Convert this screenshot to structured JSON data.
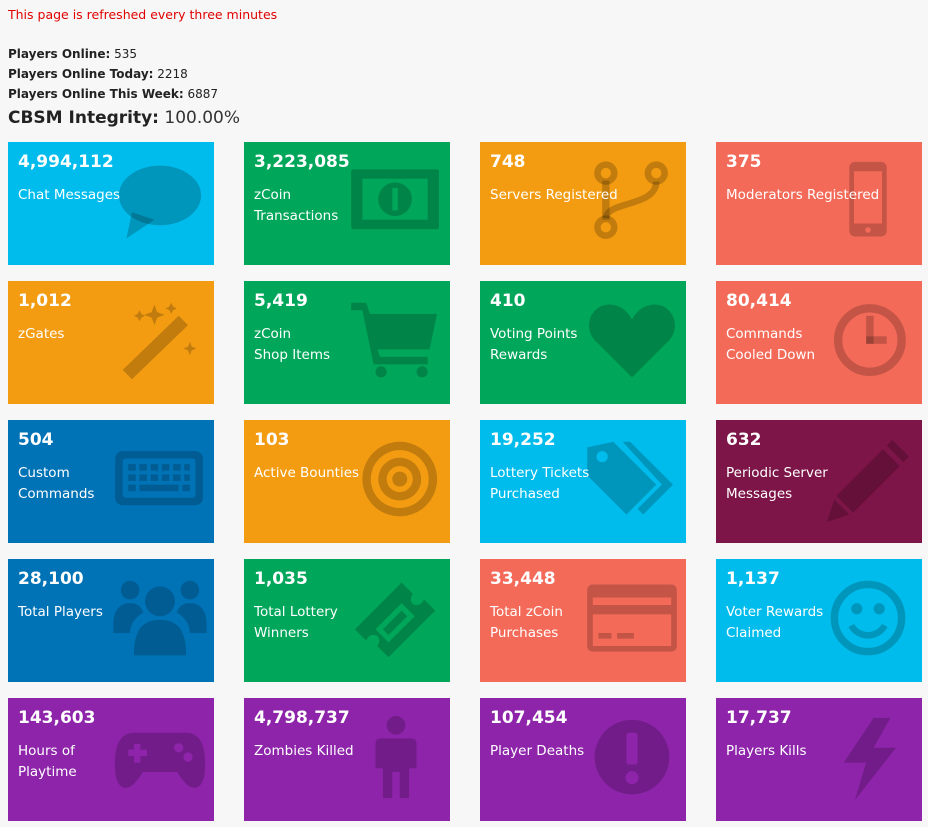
{
  "notice": "This page is refreshed every three minutes",
  "stats": [
    {
      "label": "Players Online:",
      "value": "535"
    },
    {
      "label": "Players Online Today:",
      "value": "2218"
    },
    {
      "label": "Players Online This Week:",
      "value": "6887"
    }
  ],
  "integrity": {
    "label": "CBSM Integrity:",
    "value": "100.00%"
  },
  "colors": {
    "cyan": "#00bcec",
    "green": "#00a65a",
    "orange": "#f39c12",
    "red": "#f46a58",
    "blue": "#0073b7",
    "maroon": "#7d1548",
    "purple": "#8e24aa"
  },
  "tiles": [
    {
      "value": "4,994,112",
      "label": "Chat Messages",
      "color": "#00bcec",
      "icon": "chat-bubble-icon"
    },
    {
      "value": "3,223,085",
      "label": "zCoin\nTransactions",
      "color": "#00a65a",
      "icon": "banknote-icon"
    },
    {
      "value": "748",
      "label": "Servers Registered",
      "color": "#f39c12",
      "icon": "code-fork-icon"
    },
    {
      "value": "375",
      "label": "Moderators Registered",
      "color": "#f46a58",
      "icon": "mobile-phone-icon"
    },
    {
      "value": "1,012",
      "label": "zGates",
      "color": "#f39c12",
      "icon": "magic-wand-icon"
    },
    {
      "value": "5,419",
      "label": "zCoin\nShop Items",
      "color": "#00a65a",
      "icon": "shopping-cart-icon"
    },
    {
      "value": "410",
      "label": "Voting Points\nRewards",
      "color": "#00a65a",
      "icon": "heart-icon"
    },
    {
      "value": "80,414",
      "label": "Commands\nCooled Down",
      "color": "#f46a58",
      "icon": "clock-icon"
    },
    {
      "value": "504",
      "label": "Custom\nCommands",
      "color": "#0073b7",
      "icon": "keyboard-icon"
    },
    {
      "value": "103",
      "label": "Active Bounties",
      "color": "#f39c12",
      "icon": "bullseye-icon"
    },
    {
      "value": "19,252",
      "label": "Lottery Tickets\nPurchased",
      "color": "#00bcec",
      "icon": "tags-icon"
    },
    {
      "value": "632",
      "label": "Periodic Server\nMessages",
      "color": "#7d1548",
      "icon": "pencil-icon"
    },
    {
      "value": "28,100",
      "label": "Total Players",
      "color": "#0073b7",
      "icon": "users-icon"
    },
    {
      "value": "1,035",
      "label": "Total Lottery\nWinners",
      "color": "#00a65a",
      "icon": "ticket-icon"
    },
    {
      "value": "33,448",
      "label": "Total zCoin\nPurchases",
      "color": "#f46a58",
      "icon": "credit-card-icon"
    },
    {
      "value": "1,137",
      "label": "Voter Rewards\nClaimed",
      "color": "#00bcec",
      "icon": "smile-icon"
    },
    {
      "value": "143,603",
      "label": "Hours of\nPlaytime",
      "color": "#8e24aa",
      "icon": "gamepad-icon"
    },
    {
      "value": "4,798,737",
      "label": "Zombies Killed",
      "color": "#8e24aa",
      "icon": "person-icon"
    },
    {
      "value": "107,454",
      "label": "Player Deaths",
      "color": "#8e24aa",
      "icon": "exclamation-circle-icon"
    },
    {
      "value": "17,737",
      "label": "Players Kills",
      "color": "#8e24aa",
      "icon": "lightning-bolt-icon"
    }
  ]
}
